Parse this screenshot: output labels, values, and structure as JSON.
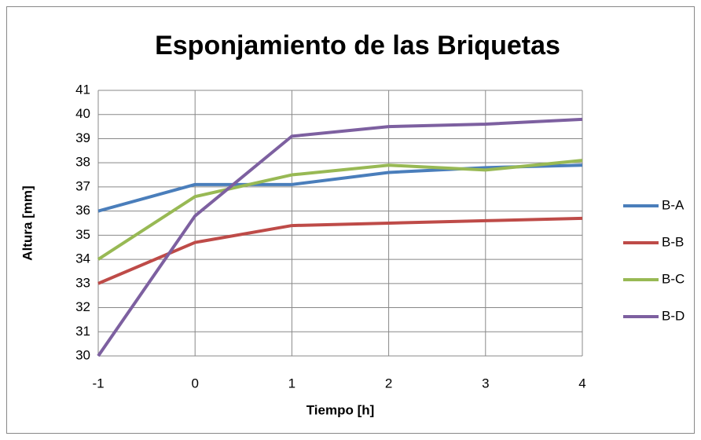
{
  "chart_data": {
    "type": "line",
    "title": "Esponjamiento de las Briquetas",
    "x_label": "Tiempo [h]",
    "y_label": "Altura [mm]",
    "x": [
      -1,
      0,
      1,
      2,
      3,
      4
    ],
    "series": [
      {
        "name": "B-A",
        "color": "#4a7ebb",
        "values": [
          36,
          37.1,
          37.1,
          37.6,
          37.8,
          37.9
        ]
      },
      {
        "name": "B-B",
        "color": "#be4b48",
        "values": [
          33,
          34.7,
          35.4,
          35.5,
          35.6,
          35.7
        ]
      },
      {
        "name": "B-C",
        "color": "#98b954",
        "values": [
          34,
          36.6,
          37.5,
          37.9,
          37.7,
          38.1
        ]
      },
      {
        "name": "B-D",
        "color": "#7d60a0",
        "values": [
          30,
          35.8,
          39.1,
          39.5,
          39.6,
          39.8
        ]
      }
    ],
    "xlim": [
      -1,
      4
    ],
    "xticks": [
      -1,
      0,
      1,
      2,
      3,
      4
    ],
    "ylim": [
      30,
      41
    ],
    "yticks": [
      30,
      31,
      32,
      33,
      34,
      35,
      36,
      37,
      38,
      39,
      40,
      41
    ],
    "grid": true,
    "legend": "right"
  }
}
